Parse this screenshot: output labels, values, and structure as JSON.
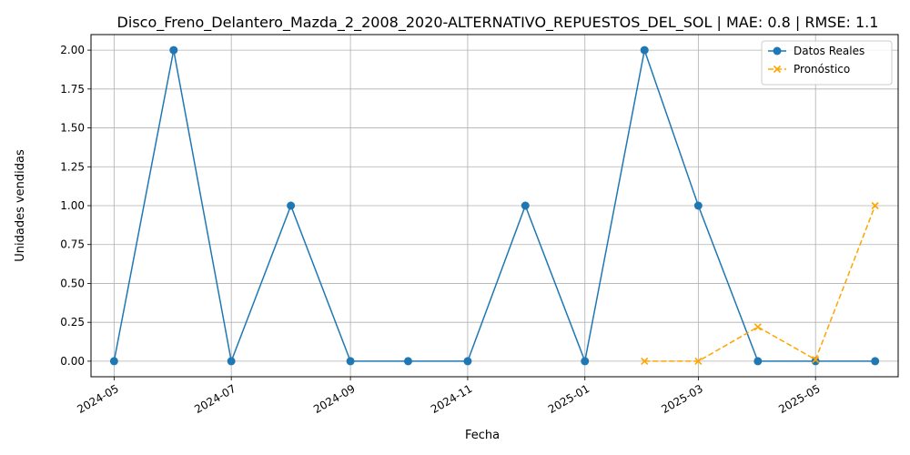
{
  "chart_data": {
    "type": "line",
    "title": "Disco_Freno_Delantero_Mazda_2_2008_2020-ALTERNATIVO_REPUESTOS_DEL_SOL | MAE: 0.8 | RMSE: 1.1",
    "xlabel": "Fecha",
    "ylabel": "Unidades vendidas",
    "ylim": [
      -0.1,
      2.1
    ],
    "xlim": [
      "2024-04-19",
      "2025-06-13"
    ],
    "grid": true,
    "legend_position": "top-right",
    "x_ticks": [
      "2024-05",
      "2024-07",
      "2024-09",
      "2024-11",
      "2025-01",
      "2025-03",
      "2025-05"
    ],
    "y_ticks": [
      "0.00",
      "0.25",
      "0.50",
      "0.75",
      "1.00",
      "1.25",
      "1.50",
      "1.75",
      "2.00"
    ],
    "series": [
      {
        "name": "Datos Reales",
        "color": "#1f77b4",
        "style": "solid",
        "marker": "circle",
        "x": [
          "2024-05-01",
          "2024-06-01",
          "2024-07-01",
          "2024-08-01",
          "2024-09-01",
          "2024-10-01",
          "2024-11-01",
          "2024-12-01",
          "2025-01-01",
          "2025-02-01",
          "2025-03-01",
          "2025-04-01",
          "2025-05-01",
          "2025-06-01"
        ],
        "values": [
          0,
          2,
          0,
          1,
          0,
          0,
          0,
          1,
          0,
          2,
          1,
          0,
          0,
          0
        ]
      },
      {
        "name": "Pronóstico",
        "color": "#ffa500",
        "style": "dashed",
        "marker": "x",
        "x": [
          "2025-02-01",
          "2025-03-01",
          "2025-04-01",
          "2025-05-01",
          "2025-06-01"
        ],
        "values": [
          0.0,
          0.0,
          0.22,
          0.01,
          1.0
        ]
      }
    ]
  }
}
